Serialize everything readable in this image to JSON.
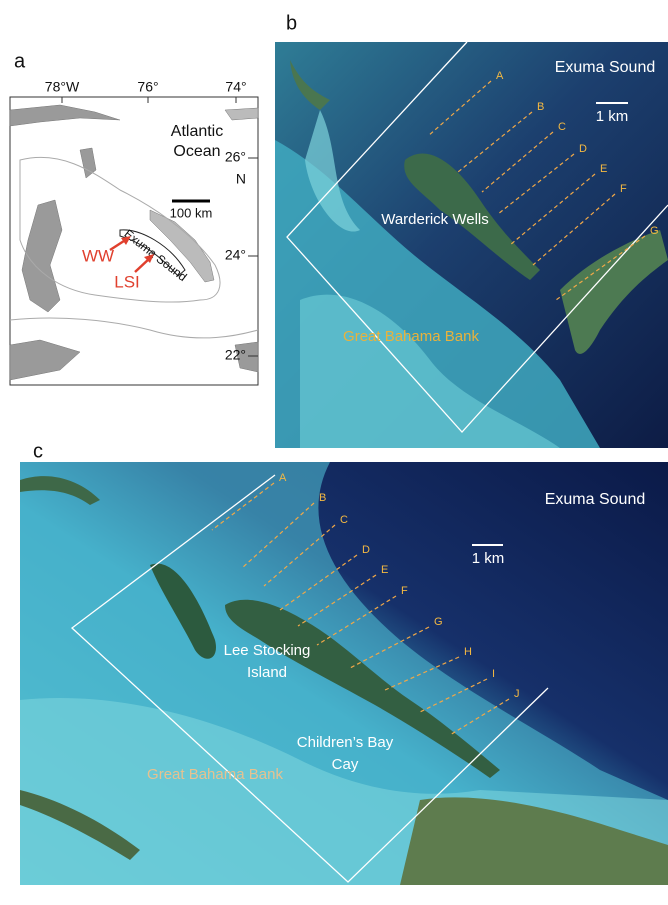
{
  "panel_a": {
    "label": "a",
    "lon_labels": [
      "78°W",
      "76°",
      "74°"
    ],
    "lat_labels": [
      "26°",
      "N",
      "24°",
      "22°"
    ],
    "ocean_label": [
      "Atlantic",
      "Ocean"
    ],
    "scale_label": "100 km",
    "sound_label": "Exuma Sound",
    "sites": [
      "WW",
      "LSI"
    ]
  },
  "panel_b": {
    "label": "b",
    "sound_label": "Exuma Sound",
    "scale_label": "1 km",
    "place_label": "Warderick Wells",
    "bank_label": "Great Bahama Bank",
    "transects": [
      "A",
      "B",
      "C",
      "D",
      "E",
      "F",
      "G"
    ]
  },
  "panel_c": {
    "label": "c",
    "sound_label": "Exuma Sound",
    "scale_label": "1 km",
    "place_labels": [
      [
        "Lee Stocking",
        "Island"
      ],
      [
        "Children’s Bay",
        "Cay"
      ]
    ],
    "bank_label": "Great Bahama Bank",
    "transects": [
      "A",
      "B",
      "C",
      "D",
      "E",
      "F",
      "G",
      "H",
      "I",
      "J"
    ]
  }
}
